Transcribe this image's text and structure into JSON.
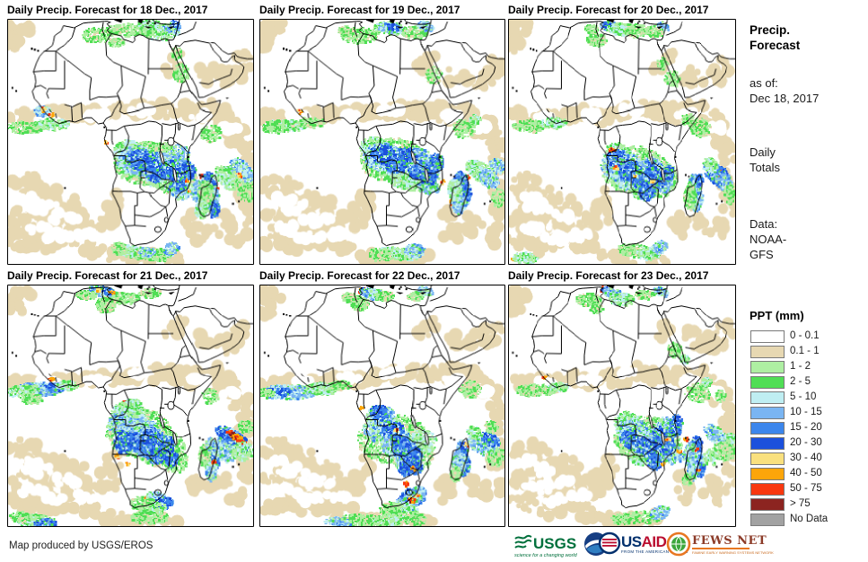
{
  "panels": [
    {
      "title": "Daily Precip. Forecast for 18 Dec., 2017"
    },
    {
      "title": "Daily Precip. Forecast for 19 Dec., 2017"
    },
    {
      "title": "Daily Precip. Forecast for 20 Dec., 2017"
    },
    {
      "title": "Daily Precip. Forecast for 21 Dec., 2017"
    },
    {
      "title": "Daily Precip. Forecast for 22 Dec., 2017"
    },
    {
      "title": "Daily Precip. Forecast for 23 Dec., 2017"
    }
  ],
  "sidebar": {
    "title_line1": "Precip.",
    "title_line2": "Forecast",
    "asof_label": "as of:",
    "asof_date": "Dec 18, 2017",
    "totals_line1": "Daily",
    "totals_line2": "Totals",
    "data_label": "Data:",
    "data_line1": "NOAA-",
    "data_line2": "GFS"
  },
  "legend": {
    "title": "PPT (mm)",
    "items": [
      {
        "key": "w0",
        "label": "0 - 0.1",
        "color": "#FFFFFF"
      },
      {
        "key": "tan",
        "label": "0.1 - 1",
        "color": "#E7D8B2"
      },
      {
        "key": "g1",
        "label": "1 - 2",
        "color": "#AEEFA2"
      },
      {
        "key": "g2",
        "label": "2 - 5",
        "color": "#50DE55"
      },
      {
        "key": "cy",
        "label": "5 - 10",
        "color": "#BFEEF2"
      },
      {
        "key": "b1",
        "label": "10 - 15",
        "color": "#7AB5F2"
      },
      {
        "key": "b2",
        "label": "15 - 20",
        "color": "#3C86EC"
      },
      {
        "key": "b3",
        "label": "20 - 30",
        "color": "#1C50DC"
      },
      {
        "key": "y",
        "label": "30 - 40",
        "color": "#F9E07E"
      },
      {
        "key": "o",
        "label": "40 - 50",
        "color": "#FCA50A"
      },
      {
        "key": "r",
        "label": "50 - 75",
        "color": "#F8380F"
      },
      {
        "key": "dr",
        "label": "> 75",
        "color": "#8C2420"
      },
      {
        "key": "nd",
        "label": "No Data",
        "color": "#A2A2A2"
      }
    ]
  },
  "footer": {
    "credit": "Map produced by USGS/EROS",
    "usgs": {
      "text": "USGS",
      "tagline": "science for a changing world",
      "color": "#00703C"
    },
    "noaa": {
      "name": "noaa-logo"
    },
    "usaid": {
      "text_us": "US",
      "text_aid": "AID",
      "tagline": "FROM THE AMERICAN PEOPLE"
    },
    "fewsnet": {
      "text": "FEWS NET",
      "tagline": "FAMINE EARLY WARNING SYSTEMS NETWORK"
    }
  }
}
